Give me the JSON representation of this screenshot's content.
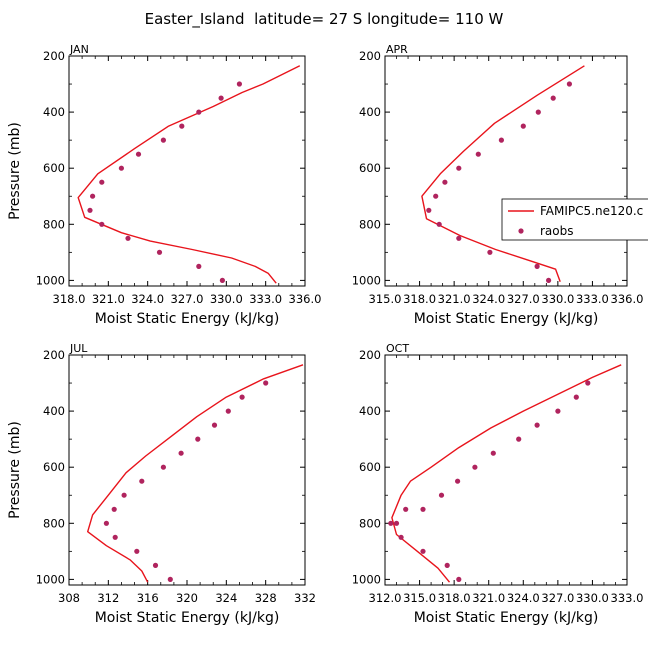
{
  "figure_title": "Easter_Island  latitude= 27 S longitude= 110 W",
  "legend": {
    "model_label": "FAMIPC5.ne120.c",
    "obs_label": "raobs",
    "model_color": "#e8141c",
    "obs_color": "#b0245e"
  },
  "chart_data": [
    {
      "type": "line",
      "panel": "JAN",
      "xlabel": "Moist Static Energy (kJ/kg)",
      "ylabel": "Pressure (mb)",
      "xlim": [
        318.0,
        336.0
      ],
      "ylim": [
        1020,
        200
      ],
      "xticks": [
        318.0,
        321.0,
        324.0,
        327.0,
        330.0,
        333.0,
        336.0
      ],
      "xtick_labels": [
        "318.0",
        "321.0",
        "324.0",
        "327.0",
        "330.0",
        "333.0",
        "336.0"
      ],
      "yticks": [
        200,
        400,
        600,
        800,
        1000
      ],
      "ytick_labels": [
        "200",
        "400",
        "600",
        "800",
        "1000"
      ],
      "model": {
        "x": [
          335.6,
          332.8,
          331.2,
          329.0,
          325.6,
          323.0,
          320.2,
          318.7,
          319.2,
          322.0,
          324.2,
          327.4,
          330.4,
          332.2,
          333.2,
          333.8
        ],
        "y": [
          235,
          300,
          330,
          380,
          450,
          530,
          620,
          705,
          775,
          830,
          860,
          890,
          920,
          950,
          975,
          1010
        ]
      },
      "obs": {
        "x": [
          331.0,
          329.6,
          327.9,
          326.6,
          325.2,
          323.3,
          322.0,
          320.5,
          319.8,
          319.6,
          320.5,
          322.5,
          324.9,
          327.9,
          329.7
        ],
        "y": [
          300,
          350,
          400,
          450,
          500,
          550,
          600,
          650,
          700,
          750,
          800,
          850,
          900,
          950,
          1000
        ]
      }
    },
    {
      "type": "line",
      "panel": "APR",
      "xlabel": "Moist Static Energy (kJ/kg)",
      "ylabel": "",
      "xlim": [
        315.0,
        336.0
      ],
      "ylim": [
        1020,
        200
      ],
      "xticks": [
        315.0,
        318.0,
        321.0,
        324.0,
        327.0,
        330.0,
        333.0,
        336.0
      ],
      "xtick_labels": [
        "315.0",
        "318.0",
        "321.0",
        "324.0",
        "327.0",
        "330.0",
        "333.0",
        "336.0"
      ],
      "yticks": [
        200,
        400,
        600,
        800,
        1000
      ],
      "ytick_labels": [
        "200",
        "400",
        "600",
        "800",
        "1000"
      ],
      "model": {
        "x": [
          332.3,
          328.2,
          324.5,
          321.8,
          319.8,
          318.2,
          318.6,
          321.5,
          324.6,
          327.6,
          329.8,
          330.2
        ],
        "y": [
          235,
          340,
          440,
          540,
          620,
          700,
          780,
          840,
          890,
          930,
          960,
          1005
        ]
      },
      "obs": {
        "x": [
          331.0,
          329.6,
          328.3,
          327.0,
          325.1,
          323.1,
          321.4,
          320.2,
          319.4,
          318.8,
          319.7,
          321.4,
          324.1,
          328.2,
          329.2
        ],
        "y": [
          300,
          350,
          400,
          450,
          500,
          550,
          600,
          650,
          700,
          750,
          800,
          850,
          900,
          950,
          1000
        ]
      }
    },
    {
      "type": "line",
      "panel": "JUL",
      "xlabel": "Moist Static Energy (kJ/kg)",
      "ylabel": "Pressure (mb)",
      "xlim": [
        308,
        332
      ],
      "ylim": [
        1020,
        200
      ],
      "xticks": [
        308,
        312,
        316,
        320,
        324,
        328,
        332
      ],
      "xtick_labels": [
        "308",
        "312",
        "316",
        "320",
        "324",
        "328",
        "332"
      ],
      "yticks": [
        200,
        400,
        600,
        800,
        1000
      ],
      "ytick_labels": [
        "200",
        "400",
        "600",
        "800",
        "1000"
      ],
      "model": {
        "x": [
          331.8,
          327.8,
          324.0,
          321.0,
          318.4,
          315.8,
          313.8,
          312.0,
          310.4,
          309.9,
          311.8,
          314.2,
          315.4,
          316.0
        ],
        "y": [
          235,
          285,
          350,
          420,
          490,
          560,
          620,
          700,
          770,
          830,
          880,
          930,
          970,
          1010
        ]
      },
      "obs": {
        "x": [
          328.0,
          325.6,
          324.2,
          322.8,
          321.1,
          319.4,
          317.6,
          315.4,
          313.6,
          312.6,
          311.8,
          312.7,
          314.9,
          316.8,
          318.3
        ],
        "y": [
          300,
          350,
          400,
          450,
          500,
          550,
          600,
          650,
          700,
          750,
          800,
          850,
          900,
          950,
          1000
        ]
      }
    },
    {
      "type": "line",
      "panel": "OCT",
      "xlabel": "Moist Static Energy (kJ/kg)",
      "ylabel": "",
      "xlim": [
        312.0,
        333.0
      ],
      "ylim": [
        1020,
        200
      ],
      "xticks": [
        312.0,
        315.0,
        318.0,
        321.0,
        324.0,
        327.0,
        330.0,
        333.0
      ],
      "xtick_labels": [
        "312.0",
        "315.0",
        "318.0",
        "321.0",
        "324.0",
        "327.0",
        "330.0",
        "333.0"
      ],
      "yticks": [
        200,
        400,
        600,
        800,
        1000
      ],
      "ytick_labels": [
        "200",
        "400",
        "600",
        "800",
        "1000"
      ],
      "model": {
        "x": [
          332.5,
          330.0,
          327.0,
          324.0,
          321.2,
          318.4,
          316.0,
          314.2,
          313.4,
          312.6,
          313.0,
          314.8,
          316.6,
          317.6
        ],
        "y": [
          235,
          280,
          340,
          400,
          460,
          530,
          600,
          650,
          700,
          780,
          840,
          900,
          960,
          1010
        ]
      },
      "obs": {
        "x": [
          329.6,
          328.6,
          327.0,
          325.2,
          323.6,
          321.4,
          319.8,
          318.3,
          316.9,
          315.3,
          313.8,
          313.0,
          312.5,
          313.4,
          315.3,
          317.4,
          318.4
        ],
        "y": [
          300,
          350,
          400,
          450,
          500,
          550,
          600,
          650,
          700,
          750,
          750,
          800,
          800,
          850,
          900,
          950,
          1000
        ]
      }
    }
  ]
}
